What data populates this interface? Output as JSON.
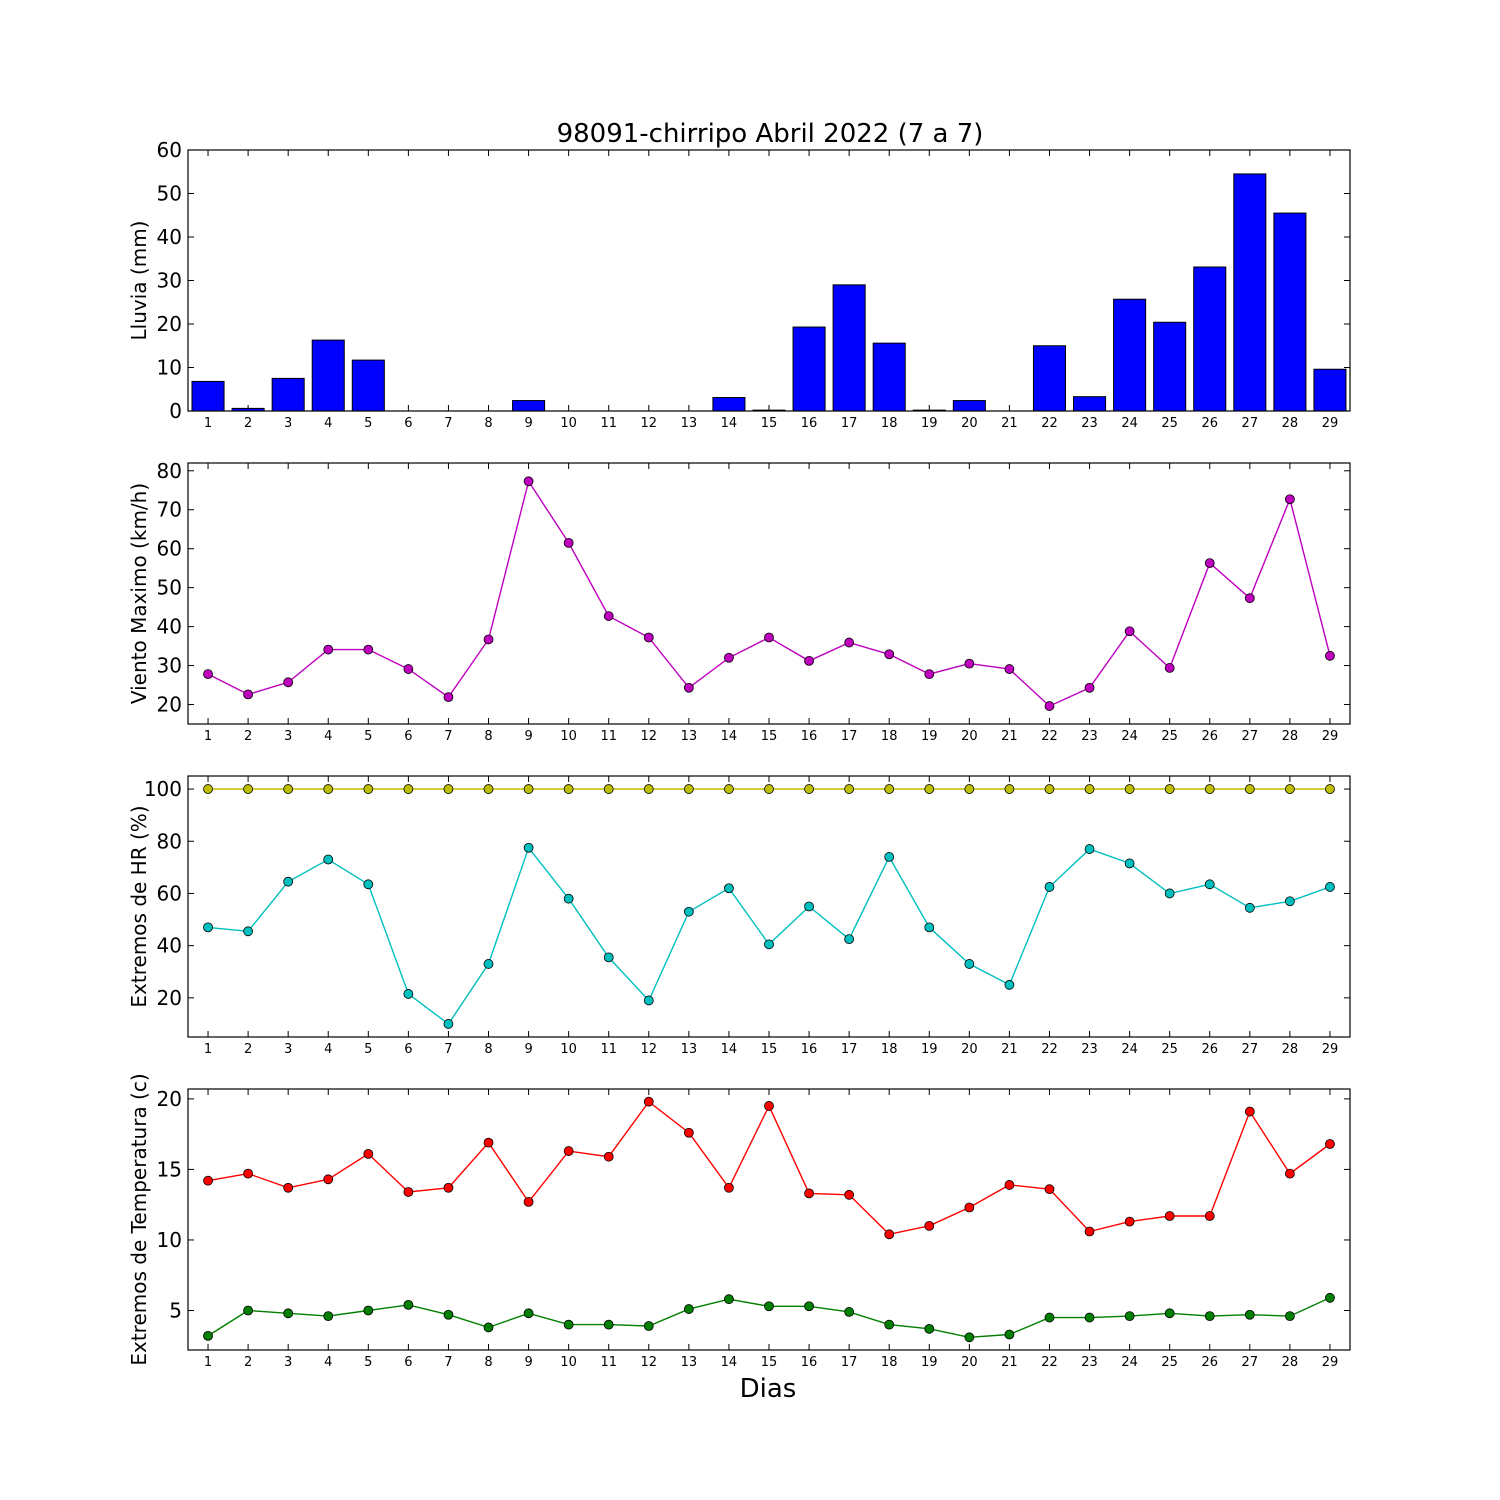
{
  "chart_data": {
    "title": "98091-chirripo Abril 2022  (7 a 7)",
    "xlabel": "Dias",
    "days": [
      1,
      2,
      3,
      4,
      5,
      6,
      7,
      8,
      9,
      10,
      11,
      12,
      13,
      14,
      15,
      16,
      17,
      18,
      19,
      20,
      21,
      22,
      23,
      24,
      25,
      26,
      27,
      28,
      29
    ],
    "panels": [
      {
        "id": "lluvia",
        "type": "bar",
        "ylabel": "Lluvia (mm)",
        "ylim": [
          0,
          60
        ],
        "yticks": [
          0,
          10,
          20,
          30,
          40,
          50,
          60
        ],
        "series": [
          {
            "color": "#0000ff",
            "values": [
              6.8,
              0.6,
              7.5,
              16.3,
              11.7,
              0,
              0,
              0,
              2.4,
              0,
              0,
              0,
              0,
              3.1,
              0.2,
              19.3,
              29.0,
              15.6,
              0.2,
              2.4,
              0,
              15.0,
              3.3,
              25.7,
              20.4,
              33.1,
              54.5,
              45.5,
              9.6
            ]
          }
        ]
      },
      {
        "id": "viento",
        "type": "line",
        "ylabel": "Viento Maximo (km/h)",
        "ylim": [
          15,
          82
        ],
        "yticks": [
          20,
          30,
          40,
          50,
          60,
          70,
          80
        ],
        "series": [
          {
            "color": "#bf00bf",
            "values": [
              27.8,
              22.6,
              25.7,
              34.1,
              34.1,
              29.1,
              21.9,
              36.7,
              77.3,
              61.5,
              42.7,
              37.2,
              24.3,
              32.0,
              37.2,
              31.2,
              35.9,
              32.9,
              27.8,
              30.5,
              29.1,
              19.6,
              24.3,
              38.8,
              29.4,
              56.3,
              47.3,
              72.7,
              32.5
            ]
          }
        ]
      },
      {
        "id": "hr",
        "type": "line",
        "ylabel": "Extremos de HR (%)",
        "ylim": [
          5,
          105
        ],
        "yticks": [
          20,
          40,
          60,
          80,
          100
        ],
        "series": [
          {
            "color": "#bfbf00",
            "values": [
              100,
              100,
              100,
              100,
              100,
              100,
              100,
              100,
              100,
              100,
              100,
              100,
              100,
              100,
              100,
              100,
              100,
              100,
              100,
              100,
              100,
              100,
              100,
              100,
              100,
              100,
              100,
              100,
              100
            ]
          },
          {
            "color": "#00bfbf",
            "values": [
              47,
              45.5,
              64.5,
              73,
              63.5,
              21.5,
              10,
              33,
              77.5,
              58,
              35.5,
              19,
              53,
              62,
              40.5,
              55,
              42.5,
              74,
              47,
              33,
              25,
              62.5,
              77,
              71.5,
              60,
              63.5,
              54.5,
              57,
              62.5
            ]
          }
        ]
      },
      {
        "id": "temp",
        "type": "line",
        "ylabel": "Extremos de Temperatura (c)",
        "ylim": [
          2.2,
          20.7
        ],
        "yticks": [
          5,
          10,
          15,
          20
        ],
        "series": [
          {
            "color": "#ff0000",
            "values": [
              14.2,
              14.7,
              13.7,
              14.3,
              16.1,
              13.4,
              13.7,
              16.9,
              12.7,
              16.3,
              15.9,
              19.8,
              17.6,
              13.7,
              19.5,
              13.3,
              13.2,
              10.4,
              11.0,
              12.3,
              13.9,
              13.6,
              10.6,
              11.3,
              11.7,
              11.7,
              19.1,
              14.7,
              16.8
            ]
          },
          {
            "color": "#007f00",
            "values": [
              3.2,
              5.0,
              4.8,
              4.6,
              5.0,
              5.4,
              4.7,
              3.8,
              4.8,
              4.0,
              4.0,
              3.9,
              5.1,
              5.8,
              5.3,
              5.3,
              4.9,
              4.0,
              3.7,
              3.1,
              3.3,
              4.5,
              4.5,
              4.6,
              4.8,
              4.6,
              4.7,
              4.6,
              5.9
            ]
          }
        ]
      }
    ]
  }
}
